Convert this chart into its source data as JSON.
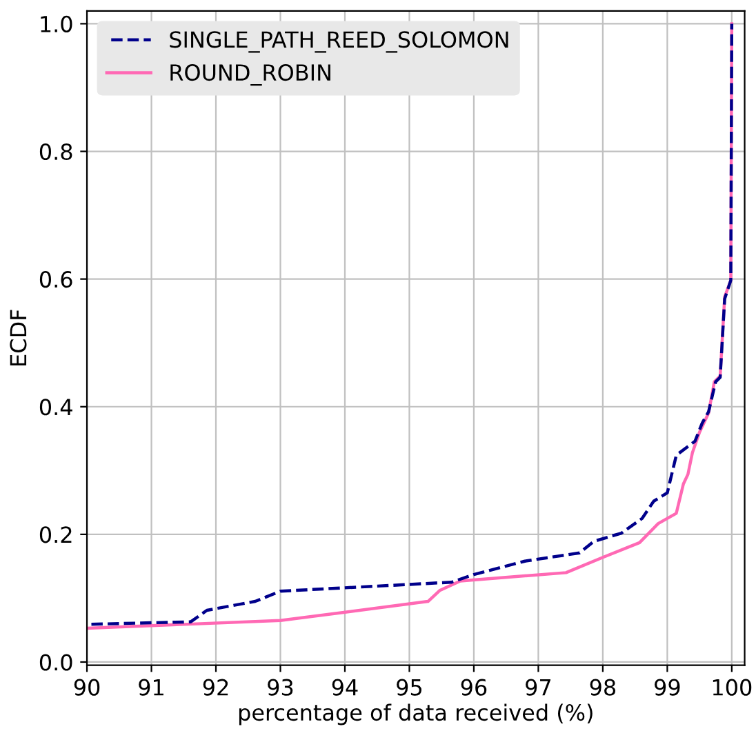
{
  "chart_data": {
    "type": "line",
    "xlabel": "percentage of data received (%)",
    "ylabel": "ECDF",
    "xlim": [
      90,
      100.2
    ],
    "ylim": [
      -0.005,
      1.02
    ],
    "xticks": [
      90,
      91,
      92,
      93,
      94,
      95,
      96,
      97,
      98,
      99,
      100
    ],
    "yticks": [
      {
        "value": 0,
        "label": "0.0"
      },
      0.2,
      0.4,
      0.6,
      0.8,
      {
        "value": 1,
        "label": "1.0"
      }
    ],
    "grid": true,
    "legend": "top left",
    "series": [
      {
        "name": "SINGLE_PATH_REED_SOLOMON",
        "color": "#00008b",
        "line_style": "dashed",
        "x": [
          90,
          91.61,
          91.86,
          92.61,
          93.0,
          95.65,
          96.0,
          96.79,
          97.64,
          97.86,
          98.29,
          98.61,
          98.79,
          99.0,
          99.14,
          99.43,
          99.54,
          99.64,
          99.75,
          99.82,
          99.89,
          99.985,
          100
        ],
        "values": [
          0.059,
          0.063,
          0.081,
          0.095,
          0.111,
          0.125,
          0.137,
          0.158,
          0.171,
          0.189,
          0.202,
          0.225,
          0.252,
          0.265,
          0.324,
          0.346,
          0.374,
          0.392,
          0.439,
          0.446,
          0.569,
          0.598,
          1.0
        ]
      },
      {
        "name": "ROUND_ROBIN",
        "color": "#ff69b4",
        "line_style": "solid",
        "x": [
          90,
          93.0,
          95.29,
          95.47,
          95.79,
          97.43,
          98.0,
          98.57,
          98.86,
          99.14,
          99.25,
          99.32,
          99.39,
          99.5,
          99.64,
          99.73,
          99.82,
          99.89,
          99.985,
          100
        ],
        "values": [
          0.053,
          0.065,
          0.095,
          0.112,
          0.127,
          0.14,
          0.164,
          0.187,
          0.217,
          0.233,
          0.279,
          0.294,
          0.328,
          0.36,
          0.39,
          0.439,
          0.448,
          0.572,
          0.598,
          1.0
        ]
      }
    ]
  }
}
